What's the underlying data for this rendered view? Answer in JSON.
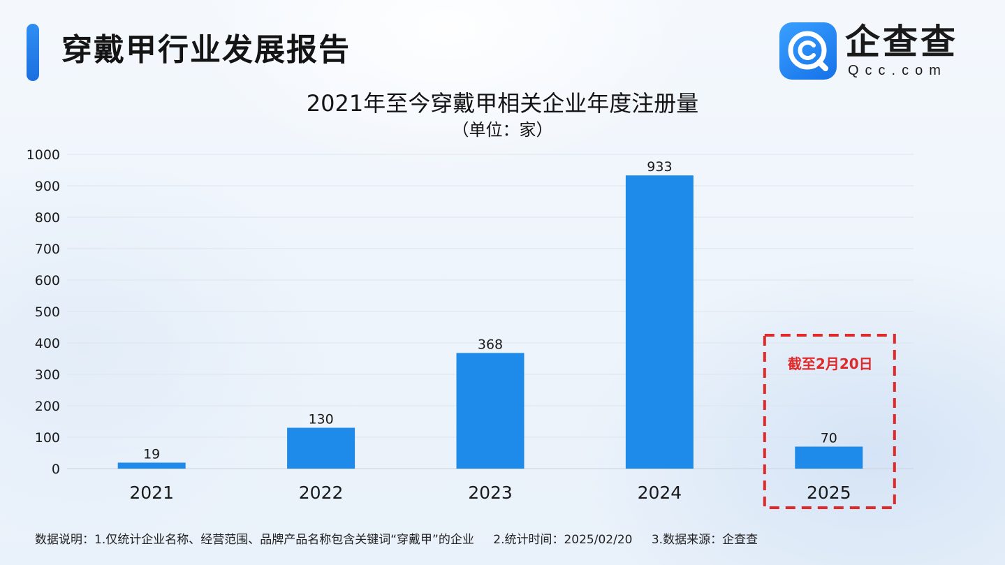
{
  "header": {
    "title": "穿戴甲行业发展报告"
  },
  "logo": {
    "name_cn": "企查查",
    "name_en": "Qcc.com",
    "icon": "qcc-logo-icon"
  },
  "colors": {
    "accent": "#1b7fe8",
    "bar": "#1e8ae9",
    "highlight": "#e02a2a"
  },
  "chart_data": {
    "type": "bar",
    "title": "2021年至今穿戴甲相关企业年度注册量",
    "subtitle": "（单位：家）",
    "categories": [
      "2021",
      "2022",
      "2023",
      "2024",
      "2025"
    ],
    "values": [
      19,
      130,
      368,
      933,
      70
    ],
    "ylim": [
      0,
      1000
    ],
    "yticks": [
      0,
      100,
      200,
      300,
      400,
      500,
      600,
      700,
      800,
      900,
      1000
    ],
    "grid": true,
    "annotation": {
      "category": "2025",
      "text": "截至2月20日",
      "style": "dashed-box"
    }
  },
  "footer": {
    "note1": "数据说明：1.仅统计企业名称、经营范围、品牌产品名称包含关键词“穿戴甲”的企业",
    "note2": "2.统计时间：2025/02/20",
    "note3": "3.数据来源：企查查"
  }
}
